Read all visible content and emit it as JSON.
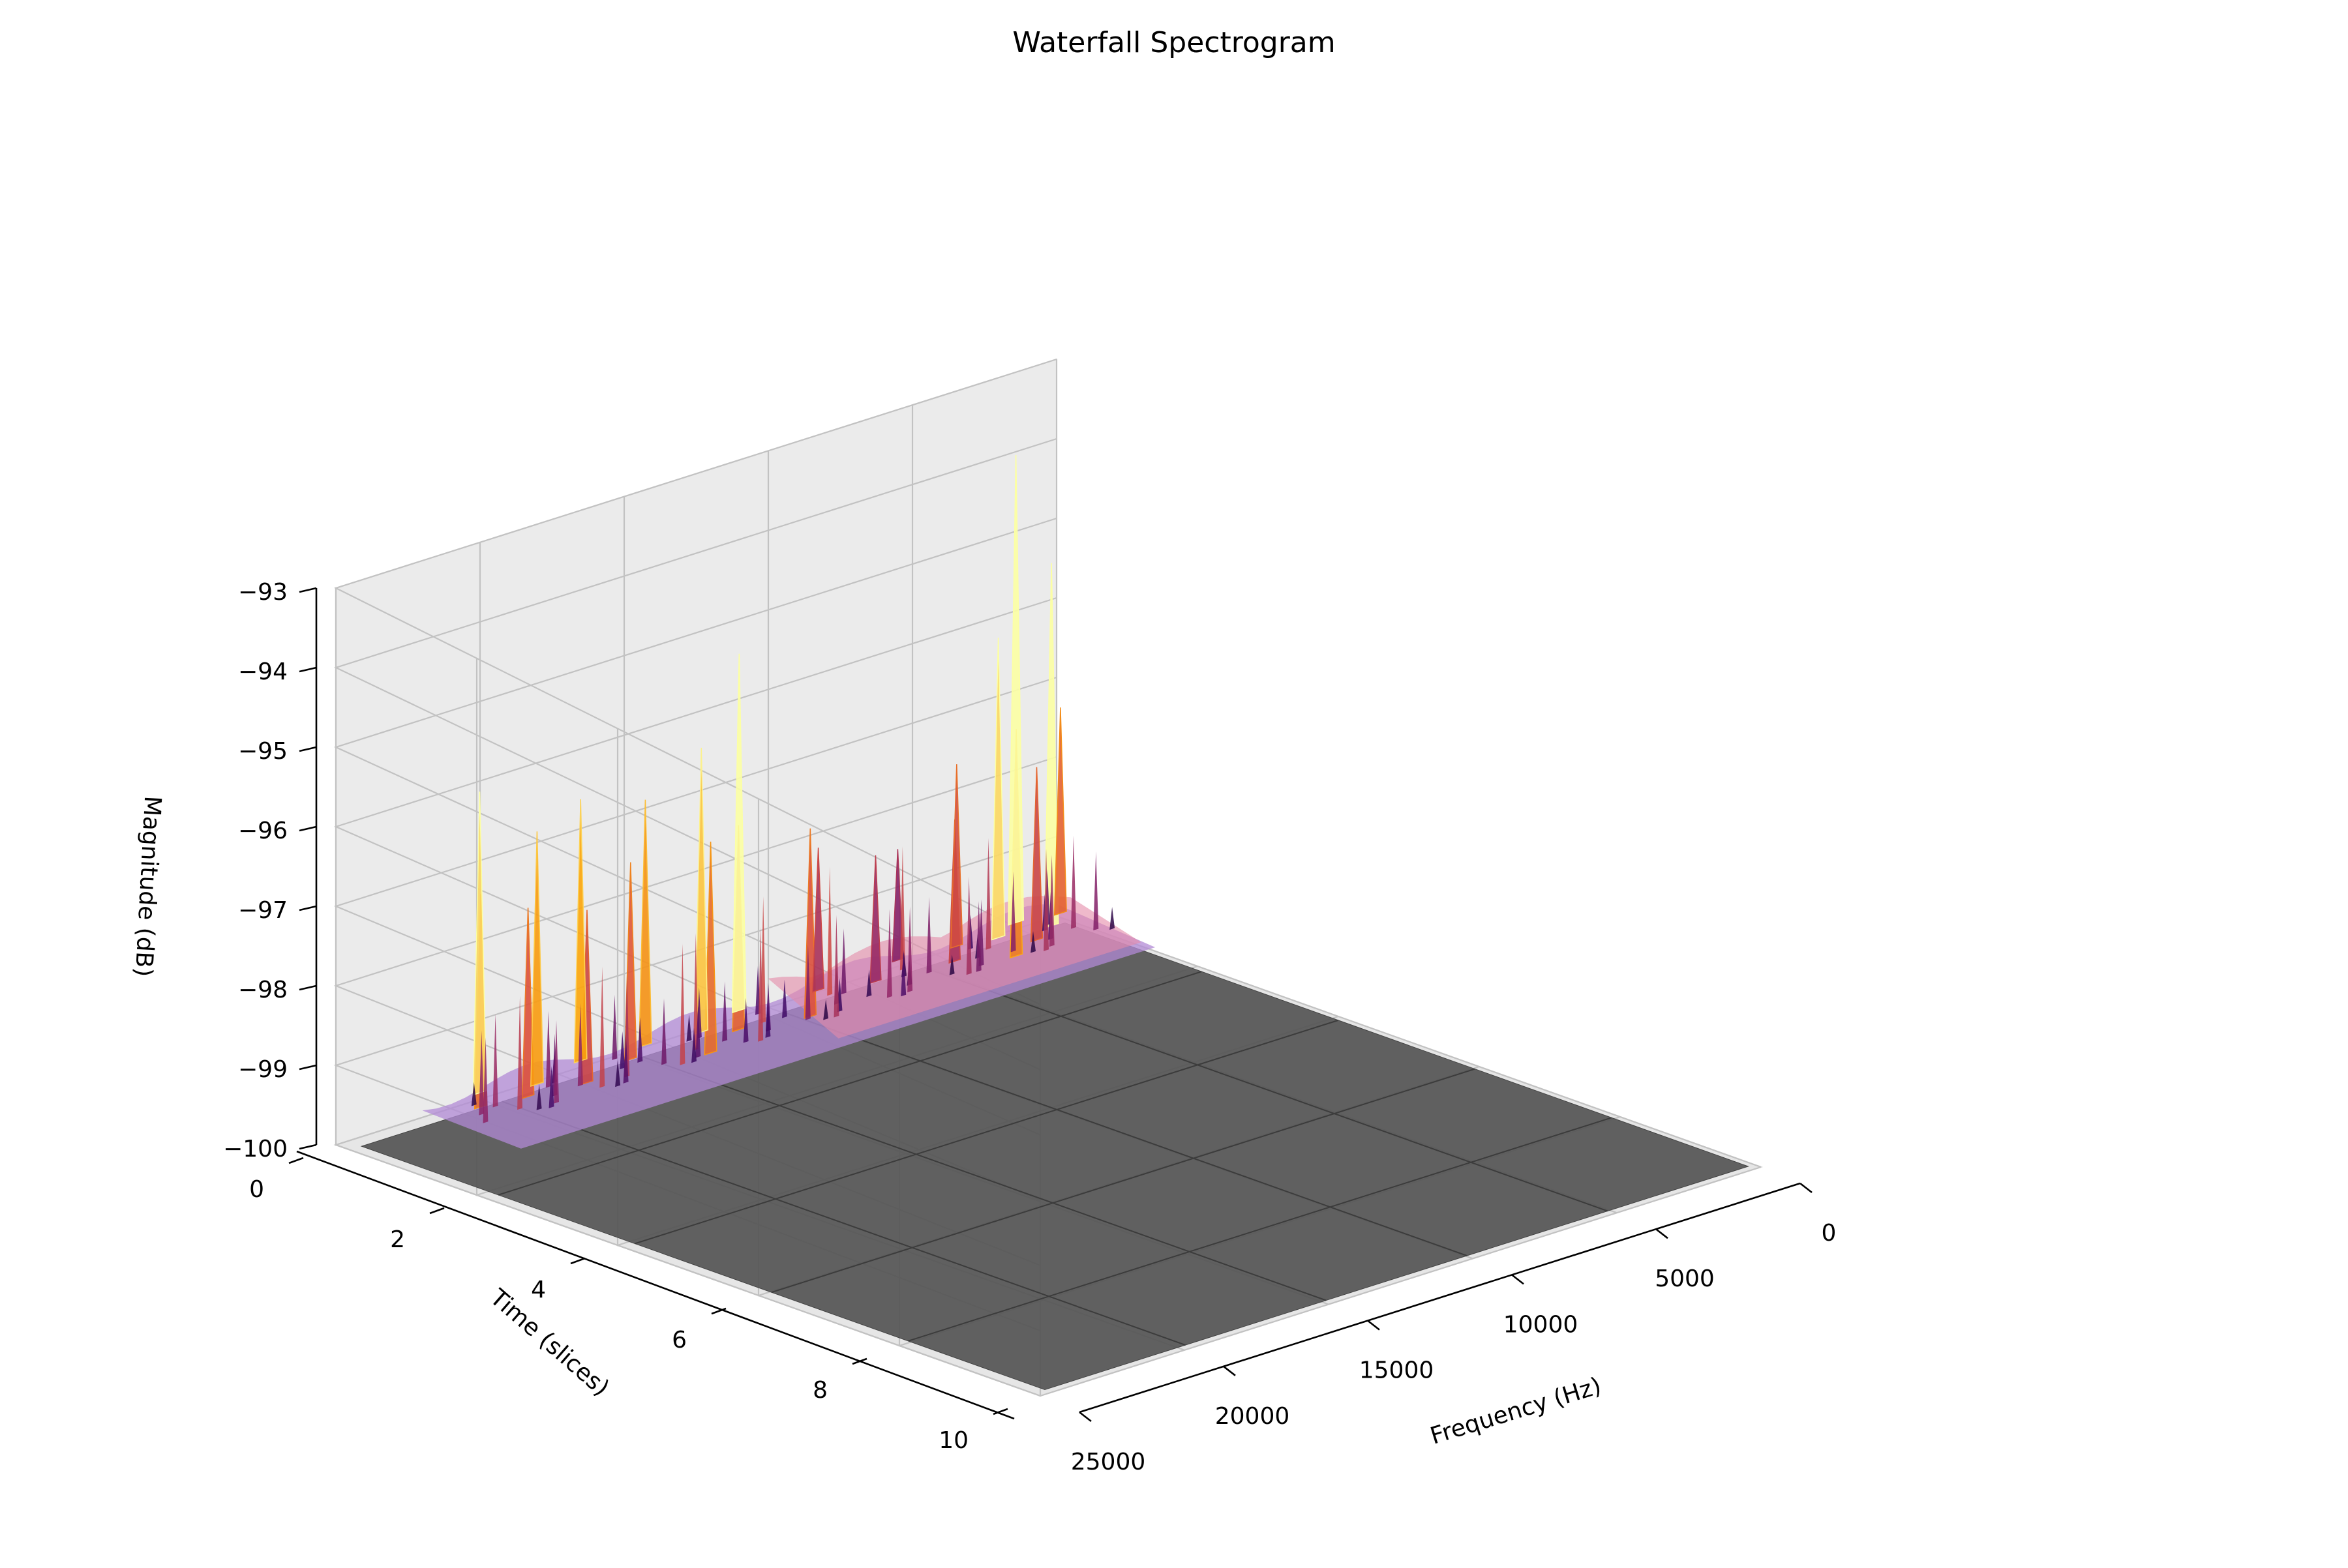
{
  "chart_data": {
    "type": "surface3d",
    "title": "Waterfall Spectrogram",
    "xlabel": "Frequency (Hz)",
    "ylabel": "Time (slices)",
    "zlabel": "Magnitude (dB)",
    "xlim": [
      0,
      25000
    ],
    "ylim": [
      0,
      10
    ],
    "zlim": [
      -100,
      -93
    ],
    "xticks": [
      "0",
      "5000",
      "10000",
      "15000",
      "20000",
      "25000"
    ],
    "yticks": [
      "0",
      "2",
      "4",
      "6",
      "8",
      "10"
    ],
    "zticks": [
      "−100",
      "−99",
      "−98",
      "−97",
      "−96",
      "−95",
      "−94",
      "−93"
    ],
    "xtick_values": [
      0,
      5000,
      10000,
      15000,
      20000,
      25000
    ],
    "ytick_values": [
      0,
      2,
      4,
      6,
      8,
      10
    ],
    "ztick_values": [
      -100,
      -99,
      -98,
      -97,
      -96,
      -95,
      -94,
      -93
    ],
    "colormap": "inferno",
    "floor_color": "#555555",
    "grid": true,
    "active_frequency_range": [
      0,
      22000
    ],
    "active_time_range": [
      0,
      1.4
    ],
    "peaks": [
      {
        "f": 600,
        "t": 0.3,
        "db": -97.2
      },
      {
        "f": 1400,
        "t": 0.5,
        "db": -95.2
      },
      {
        "f": 1900,
        "t": 0.2,
        "db": -93.9
      },
      {
        "f": 2400,
        "t": 0.7,
        "db": -97.6
      },
      {
        "f": 3000,
        "t": 0.4,
        "db": -96.0
      },
      {
        "f": 3600,
        "t": 0.9,
        "db": -96.9
      },
      {
        "f": 4200,
        "t": 0.3,
        "db": -97.5
      },
      {
        "f": 5000,
        "t": 0.6,
        "db": -98.0
      },
      {
        "f": 6000,
        "t": 0.2,
        "db": -98.4
      },
      {
        "f": 7500,
        "t": 0.5,
        "db": -98.2
      },
      {
        "f": 9000,
        "t": 0.3,
        "db": -98.0
      },
      {
        "f": 10500,
        "t": 0.8,
        "db": -97.4
      },
      {
        "f": 11500,
        "t": 0.2,
        "db": -95.3
      },
      {
        "f": 12500,
        "t": 0.6,
        "db": -97.2
      },
      {
        "f": 13300,
        "t": 0.4,
        "db": -96.2
      },
      {
        "f": 14200,
        "t": 0.9,
        "db": -97.1
      },
      {
        "f": 15000,
        "t": 0.3,
        "db": -96.7
      },
      {
        "f": 16000,
        "t": 0.5,
        "db": -97.3
      },
      {
        "f": 17000,
        "t": 0.2,
        "db": -96.5
      },
      {
        "f": 18000,
        "t": 0.7,
        "db": -97.6
      },
      {
        "f": 19000,
        "t": 0.4,
        "db": -96.6
      },
      {
        "f": 19800,
        "t": 0.6,
        "db": -97.4
      },
      {
        "f": 20500,
        "t": 0.2,
        "db": -96.0
      },
      {
        "f": 21200,
        "t": 0.5,
        "db": -97.1
      }
    ]
  }
}
